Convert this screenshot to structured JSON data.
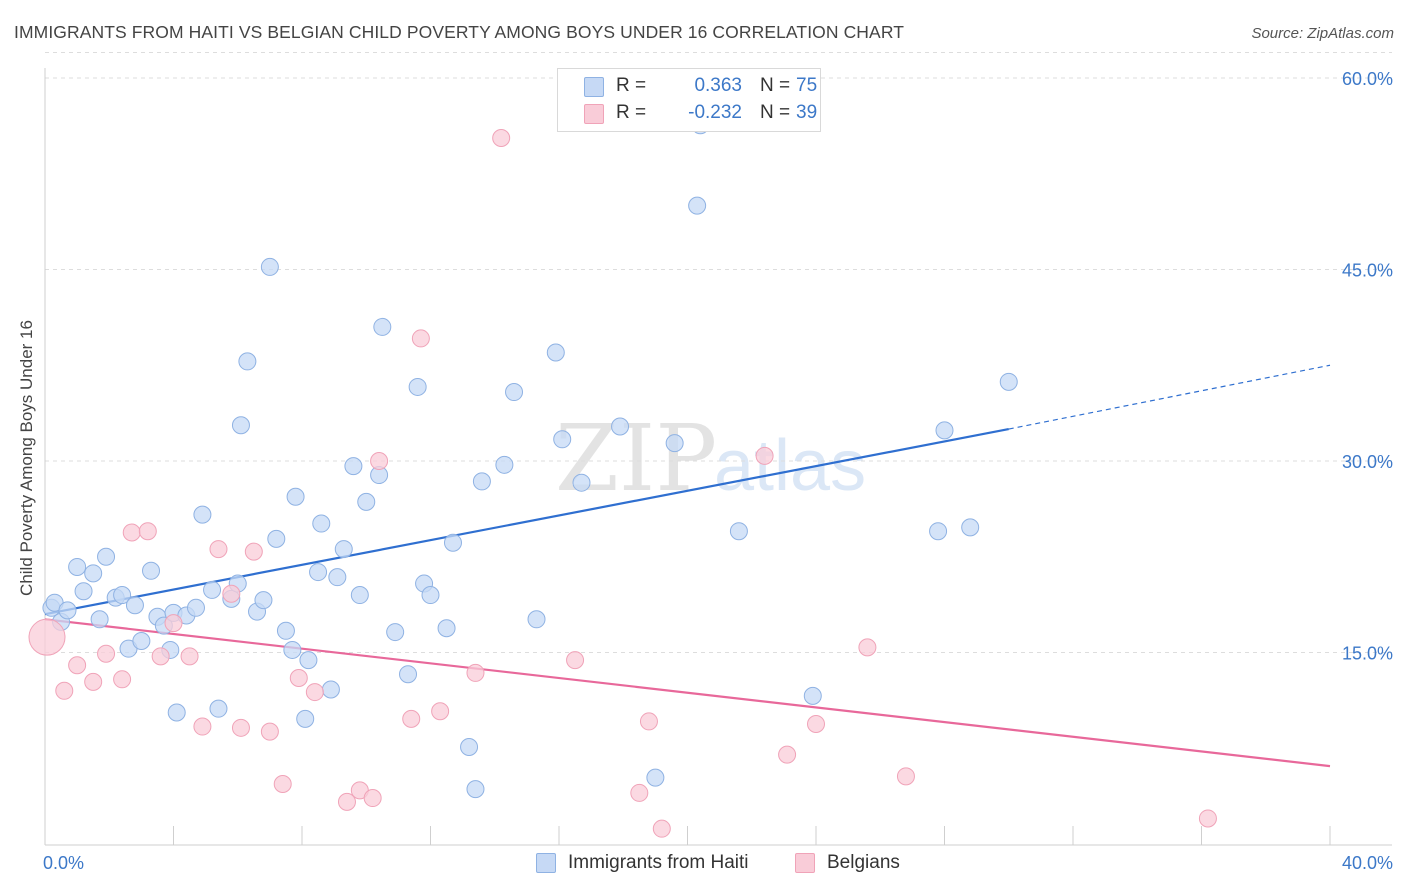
{
  "header": {
    "title": "IMMIGRANTS FROM HAITI VS BELGIAN CHILD POVERTY AMONG BOYS UNDER 16 CORRELATION CHART",
    "source": "Source: ZipAtlas.com"
  },
  "watermark": {
    "zip": "ZIP",
    "atlas": "atlas"
  },
  "colors": {
    "haiti_fill": "#c6d9f5",
    "haiti_stroke": "#8fb2e3",
    "haiti_line": "#2f6fd0",
    "belgian_fill": "#f9ccd8",
    "belgian_stroke": "#f0a3b8",
    "belgian_line": "#e8689a",
    "axis_label": "#3c78c8"
  },
  "legend": {
    "rows": [
      {
        "r_label": "R =",
        "r_value": "0.363",
        "n_label": "N =",
        "n_value": "75"
      },
      {
        "r_label": "R =",
        "r_value": "-0.232",
        "n_label": "N =",
        "n_value": "39"
      }
    ],
    "bottom": [
      "Immigrants from Haiti",
      "Belgians"
    ]
  },
  "chart_data": {
    "type": "scatter",
    "title": "IMMIGRANTS FROM HAITI VS BELGIAN CHILD POVERTY AMONG BOYS UNDER 16 CORRELATION CHART",
    "xlabel": "",
    "ylabel": "Child Poverty Among Boys Under 16",
    "xlim": [
      0,
      40
    ],
    "ylim": [
      0,
      62
    ],
    "x_tick_labels": [
      "0.0%",
      "40.0%"
    ],
    "y_ticks": [
      15,
      30,
      45,
      60
    ],
    "y_tick_labels": [
      "15.0%",
      "30.0%",
      "45.0%",
      "60.0%"
    ],
    "grid": true,
    "series": [
      {
        "name": "Immigrants from Haiti",
        "r": 0.363,
        "n": 75,
        "trend": {
          "x0": 0,
          "y0": 18.0,
          "x1": 30,
          "y1": 32.5,
          "dashed_to_x": 40,
          "dashed_to_y": 37.5
        },
        "points": [
          [
            0.2,
            18.5
          ],
          [
            0.3,
            18.9
          ],
          [
            0.5,
            17.4
          ],
          [
            0.7,
            18.3
          ],
          [
            1.0,
            21.7
          ],
          [
            1.2,
            19.8
          ],
          [
            1.5,
            21.2
          ],
          [
            1.7,
            17.6
          ],
          [
            1.9,
            22.5
          ],
          [
            2.2,
            19.3
          ],
          [
            2.4,
            19.5
          ],
          [
            2.6,
            15.3
          ],
          [
            2.8,
            18.7
          ],
          [
            3.0,
            15.9
          ],
          [
            3.3,
            21.4
          ],
          [
            3.5,
            17.8
          ],
          [
            3.7,
            17.1
          ],
          [
            3.9,
            15.2
          ],
          [
            4.0,
            18.1
          ],
          [
            4.1,
            10.3
          ],
          [
            4.4,
            17.9
          ],
          [
            4.7,
            18.5
          ],
          [
            4.9,
            25.8
          ],
          [
            5.2,
            19.9
          ],
          [
            5.4,
            10.6
          ],
          [
            5.8,
            19.2
          ],
          [
            6.0,
            20.4
          ],
          [
            6.1,
            32.8
          ],
          [
            6.3,
            37.8
          ],
          [
            6.6,
            18.2
          ],
          [
            6.8,
            19.1
          ],
          [
            7.0,
            45.2
          ],
          [
            7.2,
            23.9
          ],
          [
            7.5,
            16.7
          ],
          [
            7.7,
            15.2
          ],
          [
            7.8,
            27.2
          ],
          [
            8.1,
            9.8
          ],
          [
            8.2,
            14.4
          ],
          [
            8.5,
            21.3
          ],
          [
            8.6,
            25.1
          ],
          [
            8.9,
            12.1
          ],
          [
            9.1,
            20.9
          ],
          [
            9.3,
            23.1
          ],
          [
            9.6,
            29.6
          ],
          [
            9.8,
            19.5
          ],
          [
            10.0,
            26.8
          ],
          [
            10.4,
            28.9
          ],
          [
            10.5,
            40.5
          ],
          [
            10.9,
            16.6
          ],
          [
            11.3,
            13.3
          ],
          [
            11.6,
            35.8
          ],
          [
            11.8,
            20.4
          ],
          [
            12.0,
            19.5
          ],
          [
            12.5,
            16.9
          ],
          [
            12.7,
            23.6
          ],
          [
            13.2,
            7.6
          ],
          [
            13.4,
            4.3
          ],
          [
            13.6,
            28.4
          ],
          [
            14.3,
            29.7
          ],
          [
            14.6,
            35.4
          ],
          [
            15.3,
            17.6
          ],
          [
            15.9,
            38.5
          ],
          [
            16.1,
            31.7
          ],
          [
            16.7,
            28.3
          ],
          [
            17.9,
            32.7
          ],
          [
            19.0,
            5.2
          ],
          [
            19.6,
            31.4
          ],
          [
            20.3,
            50.0
          ],
          [
            20.4,
            56.3
          ],
          [
            21.6,
            24.5
          ],
          [
            23.9,
            11.6
          ],
          [
            27.8,
            24.5
          ],
          [
            28.0,
            32.4
          ],
          [
            28.8,
            24.8
          ],
          [
            30.0,
            36.2
          ]
        ]
      },
      {
        "name": "Belgians",
        "r": -0.232,
        "n": 39,
        "trend": {
          "x0": 0,
          "y0": 17.6,
          "x1": 40,
          "y1": 6.1
        },
        "points": [
          [
            0.0,
            16.2
          ],
          [
            0.6,
            12.0
          ],
          [
            1.0,
            14.0
          ],
          [
            1.5,
            12.7
          ],
          [
            1.9,
            14.9
          ],
          [
            2.4,
            12.9
          ],
          [
            2.7,
            24.4
          ],
          [
            3.2,
            24.5
          ],
          [
            3.6,
            14.7
          ],
          [
            4.0,
            17.3
          ],
          [
            4.5,
            14.7
          ],
          [
            4.9,
            9.2
          ],
          [
            5.4,
            23.1
          ],
          [
            5.8,
            19.6
          ],
          [
            6.1,
            9.1
          ],
          [
            6.5,
            22.9
          ],
          [
            7.0,
            8.8
          ],
          [
            7.4,
            4.7
          ],
          [
            7.9,
            13.0
          ],
          [
            8.4,
            11.9
          ],
          [
            9.4,
            3.3
          ],
          [
            9.8,
            4.2
          ],
          [
            10.2,
            3.6
          ],
          [
            10.4,
            30.0
          ],
          [
            11.4,
            9.8
          ],
          [
            11.7,
            39.6
          ],
          [
            12.3,
            10.4
          ],
          [
            13.4,
            13.4
          ],
          [
            14.2,
            55.3
          ],
          [
            16.5,
            14.4
          ],
          [
            18.5,
            4.0
          ],
          [
            18.8,
            9.6
          ],
          [
            19.2,
            1.2
          ],
          [
            22.4,
            30.4
          ],
          [
            23.1,
            7.0
          ],
          [
            24.0,
            9.4
          ],
          [
            25.6,
            15.4
          ],
          [
            26.8,
            5.3
          ],
          [
            36.2,
            2.0
          ]
        ]
      }
    ]
  }
}
